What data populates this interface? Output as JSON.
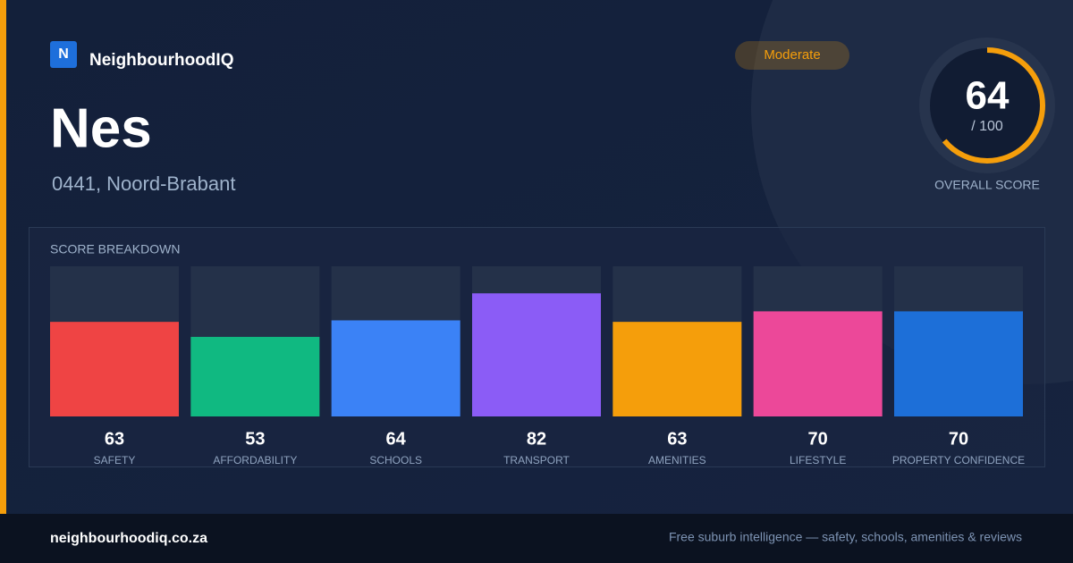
{
  "brand": {
    "logo_letter": "N",
    "name": "NeighbourhoodIQ"
  },
  "badge": "Moderate",
  "place": {
    "name": "Nes",
    "subtitle": "0441, Noord-Brabant"
  },
  "score": {
    "value": 64,
    "out_of": "/ 100",
    "range": [
      0,
      100
    ],
    "label": "OVERALL SCORE",
    "color": "#f59e0b"
  },
  "breakdown": {
    "title": "SCORE BREAKDOWN",
    "ylim": [
      0,
      100
    ],
    "items": [
      {
        "label": "SAFETY",
        "value": 63,
        "color": "#ef4444"
      },
      {
        "label": "AFFORDABILITY",
        "value": 53,
        "color": "#10b981"
      },
      {
        "label": "SCHOOLS",
        "value": 64,
        "color": "#3b82f6"
      },
      {
        "label": "TRANSPORT",
        "value": 82,
        "color": "#8b5cf6"
      },
      {
        "label": "AMENITIES",
        "value": 63,
        "color": "#f59e0b"
      },
      {
        "label": "LIFESTYLE",
        "value": 70,
        "color": "#ec4899"
      },
      {
        "label": "PROPERTY CONFIDENCE",
        "value": 70,
        "color": "#1d6fd8"
      }
    ]
  },
  "footer": {
    "site": "neighbourhoodiq.co.za",
    "tagline": "Free suburb intelligence — safety, schools, amenities & reviews"
  }
}
